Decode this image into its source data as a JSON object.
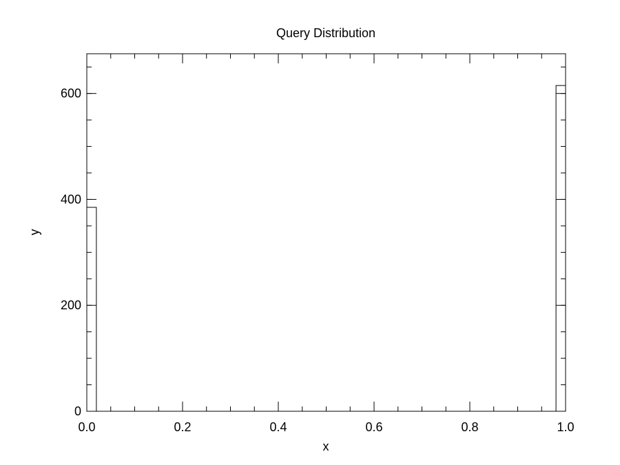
{
  "chart_data": {
    "type": "bar",
    "title": "Query Distribution",
    "xlabel": "x",
    "ylabel": "y",
    "xlim": [
      0.0,
      1.0
    ],
    "ylim": [
      0,
      675
    ],
    "bin_width": 0.02,
    "bins": [
      {
        "x0": 0.0,
        "x1": 0.02,
        "value": 385
      },
      {
        "x0": 0.98,
        "x1": 1.0,
        "value": 615
      }
    ],
    "xticks": [
      {
        "value": 0.0,
        "label": "0.0"
      },
      {
        "value": 0.2,
        "label": "0.2"
      },
      {
        "value": 0.4,
        "label": "0.4"
      },
      {
        "value": 0.6,
        "label": "0.6"
      },
      {
        "value": 0.8,
        "label": "0.8"
      },
      {
        "value": 1.0,
        "label": "1.0"
      }
    ],
    "yticks": [
      {
        "value": 0,
        "label": "0"
      },
      {
        "value": 200,
        "label": "200"
      },
      {
        "value": 400,
        "label": "400"
      },
      {
        "value": 600,
        "label": "600"
      }
    ],
    "x_minor_step": 0.05,
    "y_minor_step": 50,
    "grid": false,
    "bar_fill": "#ffffff",
    "bar_stroke": "#000000"
  }
}
